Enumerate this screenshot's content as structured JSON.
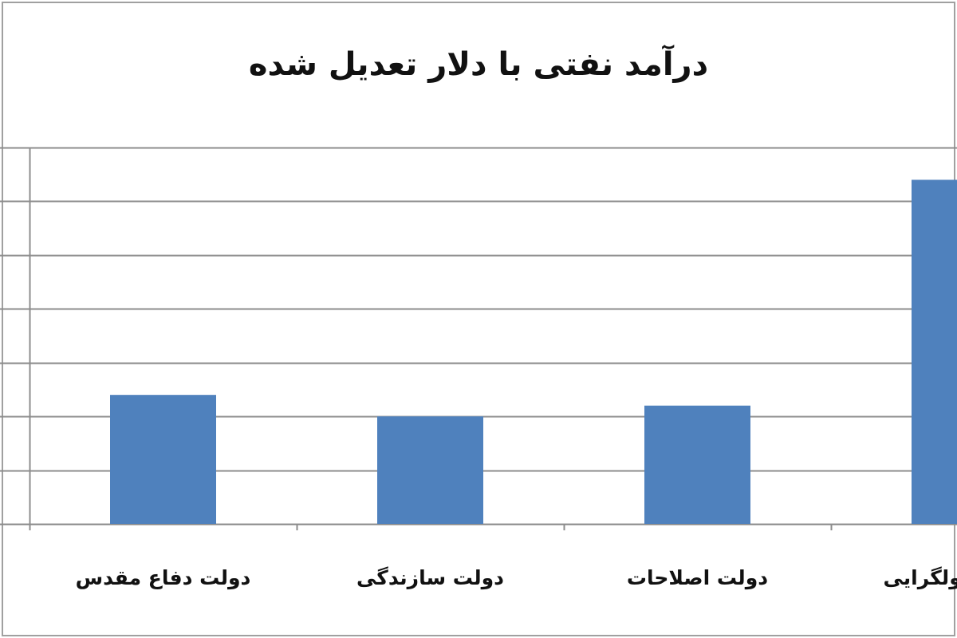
{
  "chart_data": {
    "type": "bar",
    "title": "درآمد نفتی با دلار تعدیل شده",
    "categories": [
      "دولت دفاع مقدس",
      "دولت سازندگی",
      "دولت اصلاحات",
      "دولت اصولگرایی"
    ],
    "values": [
      24,
      20,
      22,
      64
    ],
    "ylim": [
      0,
      70
    ],
    "ytick_step": 10,
    "grid": true,
    "color": "#4f81bd",
    "gridline_color": "#8c8c8c"
  }
}
